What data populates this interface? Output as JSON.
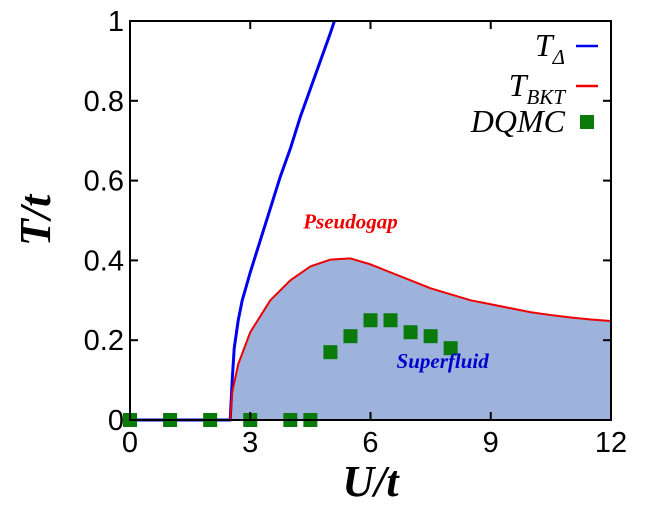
{
  "chart_data": {
    "type": "line",
    "xlabel": "U/t",
    "ylabel": "T/t",
    "xlim": [
      0,
      12
    ],
    "ylim": [
      0,
      1
    ],
    "x_ticks": [
      {
        "value": 0,
        "label": "0"
      },
      {
        "value": 3,
        "label": "3"
      },
      {
        "value": 6,
        "label": "6"
      },
      {
        "value": 9,
        "label": "9"
      },
      {
        "value": 12,
        "label": "12"
      }
    ],
    "y_ticks": [
      {
        "value": 0,
        "label": "0"
      },
      {
        "value": 0.2,
        "label": "0.2"
      },
      {
        "value": 0.4,
        "label": "0.4"
      },
      {
        "value": 0.6,
        "label": "0.6"
      },
      {
        "value": 0.8,
        "label": "0.8"
      },
      {
        "value": 1,
        "label": "1"
      }
    ],
    "legend_position": "top-right",
    "grid": false,
    "series": [
      {
        "name": "T",
        "name_subscript": "Δ",
        "kind": "line",
        "color": "#0000ee",
        "x": [
          0,
          2.5,
          2.55,
          2.6,
          2.7,
          2.8,
          3.0,
          3.25,
          3.5,
          3.75,
          4.0,
          4.25,
          4.5,
          4.75,
          5.0,
          5.1
        ],
        "y": [
          0,
          0,
          0.1,
          0.18,
          0.25,
          0.3,
          0.37,
          0.45,
          0.53,
          0.61,
          0.68,
          0.76,
          0.83,
          0.9,
          0.97,
          1.0
        ]
      },
      {
        "name": "T",
        "name_subscript": "BKT",
        "kind": "line",
        "color": "#ee0000",
        "x": [
          0,
          2.5,
          2.55,
          2.7,
          3.0,
          3.5,
          4.0,
          4.5,
          5.0,
          5.5,
          6.0,
          6.5,
          7.0,
          7.5,
          8.0,
          8.5,
          9.0,
          9.5,
          10.0,
          10.5,
          11.0,
          11.5,
          12.0
        ],
        "y": [
          0,
          0,
          0.07,
          0.14,
          0.22,
          0.3,
          0.35,
          0.385,
          0.402,
          0.405,
          0.39,
          0.37,
          0.35,
          0.33,
          0.315,
          0.3,
          0.29,
          0.28,
          0.27,
          0.263,
          0.257,
          0.252,
          0.248
        ]
      },
      {
        "name": "DQMC",
        "kind": "scatter",
        "color": "#0a7a0a",
        "x": [
          0,
          1,
          2,
          3,
          4,
          4.5,
          5,
          5.5,
          6,
          6.5,
          7,
          7.5,
          8
        ],
        "y": [
          0,
          0,
          0,
          0,
          0,
          0,
          0.17,
          0.21,
          0.25,
          0.25,
          0.22,
          0.21,
          0.18
        ]
      }
    ],
    "fill_region": {
      "under_series": "T",
      "color": "#9eb3dc"
    },
    "annotations": [
      {
        "text": "Pseudogap",
        "x": 5.5,
        "y": 0.48,
        "color": "#ee0000"
      },
      {
        "text": "Superfluid",
        "x": 7.8,
        "y": 0.13,
        "color": "#0000cc"
      }
    ]
  }
}
